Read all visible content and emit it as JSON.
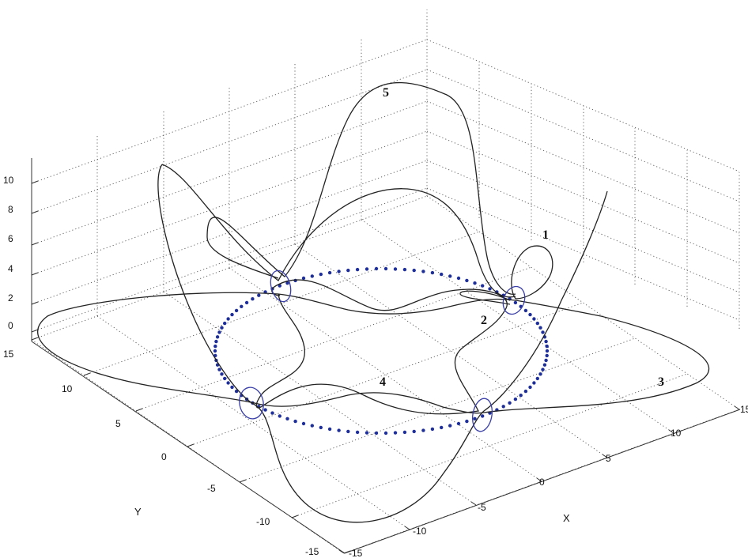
{
  "chart_data": {
    "type": "line3d",
    "title": "",
    "xlabel": "X",
    "ylabel": "Y",
    "zlabel": "",
    "xlim": [
      -15,
      15
    ],
    "ylim": [
      -15,
      15
    ],
    "zlim": [
      0,
      10
    ],
    "grid": true,
    "x_ticks": [
      "-15",
      "-10",
      "-5",
      "0",
      "5",
      "10",
      "15"
    ],
    "y_ticks": [
      "-15",
      "-10",
      "-5",
      "0",
      "5",
      "10",
      "15"
    ],
    "z_ticks": [
      "0",
      "2",
      "4",
      "6",
      "8",
      "10"
    ],
    "colors": {
      "curves": "#222222",
      "loops": "#3a3fa8",
      "circle": "#1f2f9a"
    },
    "curve_labels": [
      "1",
      "2",
      "3",
      "4",
      "5"
    ],
    "reference_circle": {
      "style": "dotted",
      "color": "#1f2f9a"
    }
  }
}
